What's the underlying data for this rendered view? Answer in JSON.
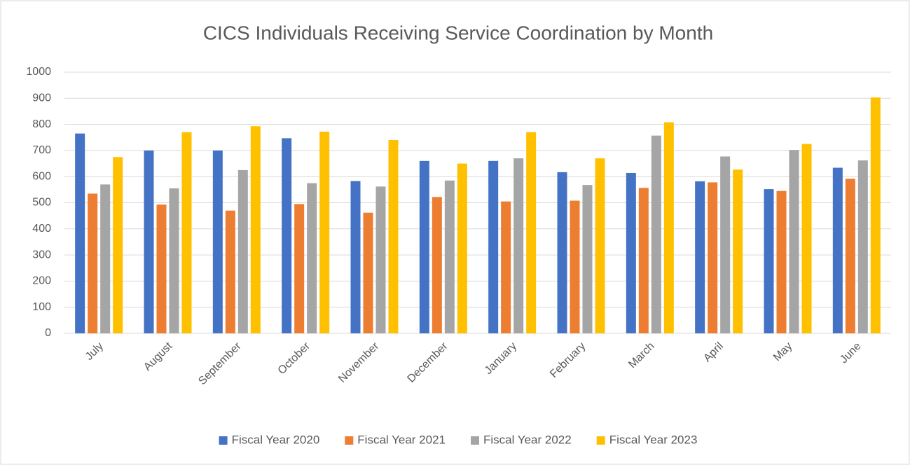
{
  "chart_data": {
    "type": "bar",
    "title": "CICS Individuals Receiving Service Coordination by Month",
    "categories": [
      "July",
      "August",
      "September",
      "October",
      "November",
      "December",
      "January",
      "February",
      "March",
      "April",
      "May",
      "June"
    ],
    "series": [
      {
        "name": "Fiscal Year 2020",
        "color": "#4472c4",
        "values": [
          765,
          700,
          700,
          747,
          583,
          660,
          660,
          617,
          614,
          582,
          552,
          634
        ]
      },
      {
        "name": "Fiscal Year 2021",
        "color": "#ed7d31",
        "values": [
          535,
          493,
          470,
          495,
          462,
          522,
          505,
          508,
          557,
          578,
          545,
          592
        ]
      },
      {
        "name": "Fiscal Year 2022",
        "color": "#a5a5a5",
        "values": [
          570,
          555,
          625,
          575,
          562,
          585,
          670,
          568,
          757,
          677,
          702,
          662
        ]
      },
      {
        "name": "Fiscal Year 2023",
        "color": "#ffc000",
        "values": [
          675,
          770,
          793,
          772,
          740,
          650,
          770,
          670,
          808,
          627,
          725,
          903
        ]
      }
    ],
    "ylim": [
      0,
      1000
    ],
    "yticks": [
      0,
      100,
      200,
      300,
      400,
      500,
      600,
      700,
      800,
      900,
      1000
    ],
    "grid": true,
    "legend": "bottom"
  }
}
